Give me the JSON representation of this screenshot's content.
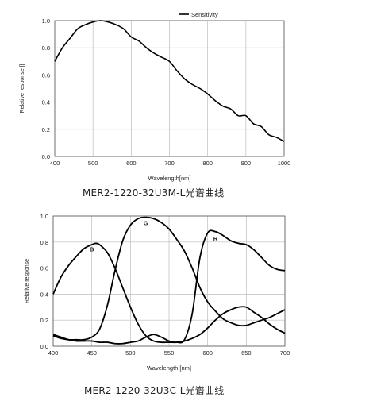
{
  "chart_data": [
    {
      "type": "line",
      "xlabel": "Wavelength[nm]",
      "ylabel": "Relative response []",
      "xlim": [
        400,
        1000
      ],
      "ylim": [
        0,
        1.0
      ],
      "x_ticks": [
        "400",
        "500",
        "600",
        "700",
        "800",
        "900",
        "1000"
      ],
      "y_ticks": [
        "0.0",
        "0.2",
        "0.4",
        "0.6",
        "0.8",
        "1.0"
      ],
      "grid": true,
      "legend_position": "top-center",
      "caption": "MER2-1220-32U3M-L光谱曲线",
      "series": [
        {
          "name": "Sensitivity",
          "color": "#000000",
          "x": [
            400,
            420,
            440,
            460,
            480,
            500,
            520,
            540,
            560,
            580,
            600,
            620,
            640,
            660,
            680,
            700,
            720,
            740,
            760,
            780,
            800,
            820,
            840,
            860,
            880,
            900,
            920,
            940,
            960,
            980,
            1000
          ],
          "y": [
            0.7,
            0.8,
            0.87,
            0.94,
            0.97,
            0.99,
            1.0,
            0.99,
            0.97,
            0.94,
            0.88,
            0.85,
            0.8,
            0.76,
            0.73,
            0.7,
            0.63,
            0.57,
            0.53,
            0.5,
            0.46,
            0.41,
            0.37,
            0.35,
            0.3,
            0.3,
            0.24,
            0.22,
            0.16,
            0.14,
            0.11
          ]
        }
      ]
    },
    {
      "type": "line",
      "xlabel": "Wavelength [nm]",
      "ylabel": "Relative response",
      "xlim": [
        400,
        700
      ],
      "ylim": [
        0,
        1.0
      ],
      "x_ticks": [
        "400",
        "450",
        "500",
        "550",
        "600",
        "650",
        "700"
      ],
      "y_ticks": [
        "0.0",
        "0.2",
        "0.4",
        "0.6",
        "0.8",
        "1.0"
      ],
      "grid": true,
      "caption": "MER2-1220-32U3C-L光谱曲线",
      "series": [
        {
          "name": "B",
          "color": "#000000",
          "x": [
            400,
            410,
            420,
            430,
            440,
            450,
            455,
            460,
            470,
            480,
            490,
            500,
            510,
            520,
            530,
            540,
            550,
            560,
            570,
            580,
            590,
            600,
            610,
            620,
            630,
            640,
            650,
            660,
            670,
            680,
            690,
            700
          ],
          "y": [
            0.4,
            0.53,
            0.62,
            0.69,
            0.75,
            0.78,
            0.79,
            0.78,
            0.72,
            0.6,
            0.45,
            0.3,
            0.17,
            0.08,
            0.04,
            0.03,
            0.03,
            0.03,
            0.04,
            0.06,
            0.09,
            0.14,
            0.2,
            0.25,
            0.28,
            0.3,
            0.3,
            0.26,
            0.22,
            0.17,
            0.13,
            0.1
          ]
        },
        {
          "name": "G",
          "color": "#000000",
          "x": [
            400,
            410,
            420,
            430,
            440,
            450,
            460,
            470,
            480,
            490,
            500,
            510,
            520,
            530,
            540,
            550,
            560,
            570,
            580,
            590,
            600,
            610,
            620,
            630,
            640,
            650,
            660,
            670,
            680,
            690,
            700
          ],
          "y": [
            0.08,
            0.06,
            0.05,
            0.05,
            0.05,
            0.07,
            0.13,
            0.31,
            0.58,
            0.81,
            0.93,
            0.98,
            0.99,
            0.98,
            0.95,
            0.9,
            0.82,
            0.73,
            0.6,
            0.45,
            0.34,
            0.27,
            0.21,
            0.18,
            0.16,
            0.16,
            0.18,
            0.2,
            0.22,
            0.25,
            0.28
          ]
        },
        {
          "name": "R",
          "color": "#000000",
          "x": [
            400,
            410,
            420,
            430,
            440,
            450,
            460,
            470,
            480,
            490,
            500,
            510,
            520,
            530,
            540,
            550,
            560,
            570,
            580,
            590,
            600,
            610,
            620,
            630,
            640,
            650,
            660,
            670,
            680,
            690,
            700
          ],
          "y": [
            0.09,
            0.07,
            0.05,
            0.04,
            0.04,
            0.04,
            0.03,
            0.03,
            0.02,
            0.02,
            0.03,
            0.04,
            0.07,
            0.09,
            0.07,
            0.04,
            0.03,
            0.05,
            0.25,
            0.68,
            0.87,
            0.88,
            0.85,
            0.81,
            0.79,
            0.78,
            0.74,
            0.68,
            0.62,
            0.59,
            0.58
          ]
        }
      ]
    }
  ]
}
